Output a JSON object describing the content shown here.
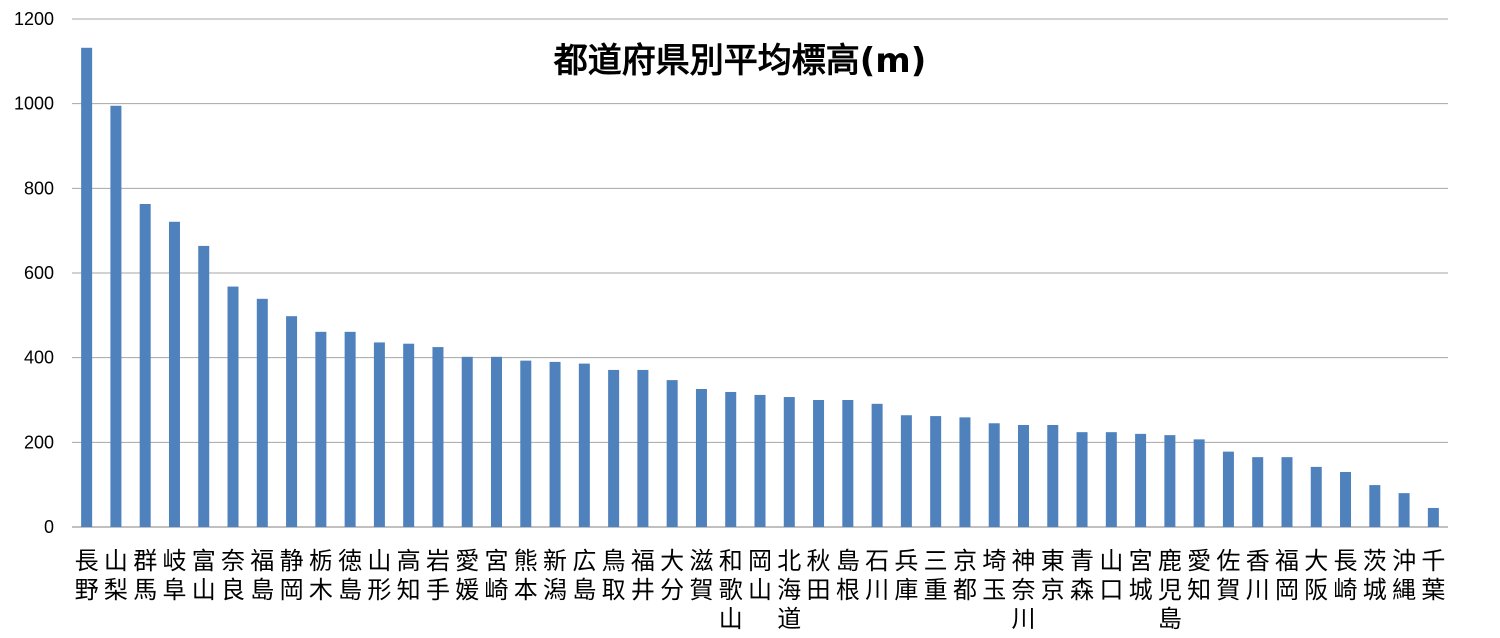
{
  "chart_data": {
    "type": "bar",
    "title": "都道府県別平均標高(m)",
    "xlabel": "",
    "ylabel": "",
    "ylim": [
      0,
      1200
    ],
    "yticks": [
      0,
      200,
      400,
      600,
      800,
      1000,
      1200
    ],
    "grid": true,
    "legend": "none",
    "bar_color": "#4F81BD",
    "categories": [
      "長野",
      "山梨",
      "群馬",
      "岐阜",
      "富山",
      "奈良",
      "福島",
      "静岡",
      "栃木",
      "徳島",
      "山形",
      "高知",
      "岩手",
      "愛媛",
      "宮崎",
      "熊本",
      "新潟",
      "広島",
      "鳥取",
      "福井",
      "大分",
      "滋賀",
      "和歌山",
      "岡山",
      "北海道",
      "秋田",
      "島根",
      "石川",
      "兵庫",
      "三重",
      "京都",
      "埼玉",
      "神奈川",
      "東京",
      "青森",
      "山口",
      "宮城",
      "鹿児島",
      "愛知",
      "佐賀",
      "香川",
      "福岡",
      "大阪",
      "長崎",
      "茨城",
      "沖縄",
      "千葉"
    ],
    "values": [
      1132,
      995,
      763,
      721,
      664,
      568,
      539,
      498,
      461,
      461,
      436,
      433,
      425,
      402,
      402,
      393,
      390,
      386,
      371,
      371,
      347,
      326,
      319,
      312,
      307,
      300,
      300,
      291,
      264,
      262,
      259,
      245,
      241,
      241,
      224,
      224,
      220,
      217,
      207,
      178,
      165,
      165,
      142,
      130,
      99,
      80,
      45
    ]
  }
}
